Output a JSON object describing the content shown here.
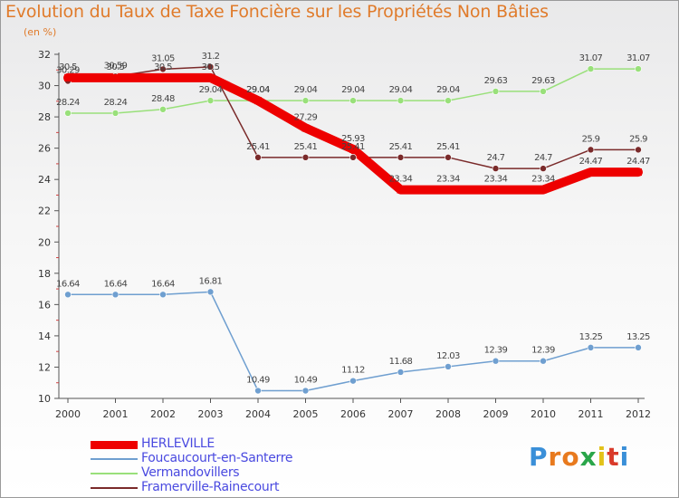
{
  "title": "Evolution du Taux de Taxe Foncière sur les Propriétés Non Bâties",
  "unit_label": "(en %)",
  "logo": {
    "letters": [
      "P",
      "r",
      "o",
      "x",
      "i",
      "t",
      "i"
    ],
    "colors": [
      "#3a8fd8",
      "#e87a1e",
      "#e87a1e",
      "#2aa64a",
      "#e2c21a",
      "#d93a2a",
      "#3a8fd8"
    ]
  },
  "chart_data": {
    "type": "line",
    "categories": [
      "2000",
      "2001",
      "2002",
      "2003",
      "2004",
      "2005",
      "2006",
      "2007",
      "2008",
      "2009",
      "2010",
      "2011",
      "2012"
    ],
    "ylim": [
      10,
      32
    ],
    "yticks": [
      10,
      12,
      14,
      16,
      18,
      20,
      22,
      24,
      26,
      28,
      30,
      32
    ],
    "grid": false,
    "legend_position": "bottom-left",
    "series": [
      {
        "name": "HERLEVILLE",
        "color": "#ee0000",
        "values": [
          30.5,
          30.5,
          30.5,
          30.5,
          29.04,
          27.29,
          25.93,
          23.34,
          23.34,
          23.34,
          23.34,
          24.47,
          24.47
        ],
        "labels": [
          "30.5",
          "30.5",
          "30.5",
          "30.5",
          "29.04",
          "27.29",
          "25.93",
          "23.34",
          "23.34",
          "23.34",
          "23.34",
          "24.47",
          "24.47"
        ]
      },
      {
        "name": "Foucaucourt-en-Santerre",
        "color": "#6f9fd0",
        "values": [
          16.64,
          16.64,
          16.64,
          16.81,
          10.49,
          10.49,
          11.12,
          11.68,
          12.03,
          12.39,
          12.39,
          13.25,
          13.25
        ],
        "labels": [
          "16.64",
          "16.64",
          "16.64",
          "16.81",
          "10.49",
          "10.49",
          "11.12",
          "11.68",
          "12.03",
          "12.39",
          "12.39",
          "13.25",
          "13.25"
        ]
      },
      {
        "name": "Vermandovillers",
        "color": "#99e07a",
        "values": [
          28.24,
          28.24,
          28.48,
          29.04,
          29.04,
          29.04,
          29.04,
          29.04,
          29.04,
          29.63,
          29.63,
          31.07,
          31.07
        ],
        "labels": [
          "28.24",
          "28.24",
          "28.48",
          "29.04",
          "29.04",
          "29.04",
          "29.04",
          "29.04",
          "29.04",
          "29.63",
          "29.63",
          "31.07",
          "31.07"
        ]
      },
      {
        "name": "Framerville-Rainecourt",
        "color": "#7a2a2a",
        "values": [
          30.29,
          30.59,
          31.05,
          31.2,
          25.41,
          25.41,
          25.41,
          25.41,
          25.41,
          24.7,
          24.7,
          25.9,
          25.9
        ],
        "labels": [
          "30.29",
          "30.59",
          "31.05",
          "31.2",
          "25.41",
          "25.41",
          "25.41",
          "25.41",
          "25.41",
          "24.7",
          "24.7",
          "25.9",
          "25.9"
        ]
      }
    ]
  }
}
